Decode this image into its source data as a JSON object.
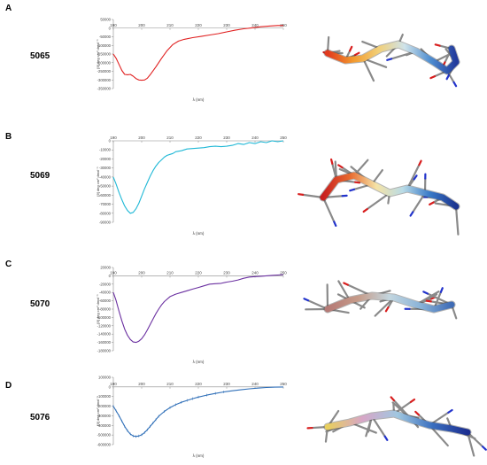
{
  "chart_data": [
    {
      "type": "line",
      "panel_label": "A",
      "sample_id": "5065",
      "color": "#e02020",
      "xlabel": "λ (nm)",
      "ylabel": "[θ] deg cm² dmol⁻¹",
      "xlim": [
        190,
        250
      ],
      "ylim": [
        -350000,
        50000
      ],
      "x_ticks": [
        "190",
        "200",
        "210",
        "220",
        "230",
        "240",
        "250"
      ],
      "y_ticks": [
        "50000",
        "0",
        "-50000",
        "-100000",
        "-150000",
        "-200000",
        "-250000",
        "-300000",
        "-350000"
      ],
      "series": [
        {
          "x": [
            190,
            191,
            192,
            193,
            194,
            195,
            196,
            197,
            198,
            199,
            200,
            201,
            202,
            203,
            205,
            207,
            209,
            211,
            213,
            215,
            218,
            221,
            224,
            227,
            230,
            233,
            236,
            239,
            242,
            245,
            248,
            250
          ],
          "y": [
            -150000,
            -175000,
            -210000,
            -245000,
            -268000,
            -270000,
            -268000,
            -278000,
            -292000,
            -300000,
            -302000,
            -300000,
            -290000,
            -270000,
            -225000,
            -175000,
            -130000,
            -95000,
            -75000,
            -65000,
            -55000,
            -48000,
            -40000,
            -32000,
            -22000,
            -12000,
            -4000,
            2000,
            8000,
            12000,
            15000,
            15000
          ]
        }
      ]
    },
    {
      "type": "line",
      "panel_label": "B",
      "sample_id": "5069",
      "color": "#1fb8d6",
      "xlabel": "λ (nm)",
      "ylabel": "[θ] deg cm² dmol⁻¹",
      "xlim": [
        190,
        250
      ],
      "ylim": [
        -90000,
        0
      ],
      "x_ticks": [
        "190",
        "200",
        "210",
        "220",
        "230",
        "240",
        "250"
      ],
      "y_ticks": [
        "0",
        "-10000",
        "-20000",
        "-30000",
        "-40000",
        "-50000",
        "-60000",
        "-70000",
        "-80000",
        "-90000"
      ],
      "series": [
        {
          "x": [
            190,
            191,
            192,
            193,
            194,
            195,
            196,
            197,
            198,
            199,
            200,
            201,
            202,
            203,
            204,
            205,
            206,
            207,
            208,
            209,
            210,
            211,
            212,
            214,
            216,
            218,
            220,
            222,
            224,
            226,
            228,
            230,
            232,
            234,
            236,
            238,
            240,
            242,
            244,
            246,
            248,
            250
          ],
          "y": [
            -40000,
            -48000,
            -57000,
            -65000,
            -72000,
            -77000,
            -80000,
            -79000,
            -75000,
            -69000,
            -61000,
            -53000,
            -46000,
            -39000,
            -33000,
            -28000,
            -24000,
            -21000,
            -18000,
            -16000,
            -15000,
            -14000,
            -12000,
            -11000,
            -9000,
            -8500,
            -8000,
            -7500,
            -6500,
            -6000,
            -6500,
            -6000,
            -5000,
            -3000,
            -4000,
            -2000,
            -3000,
            -1000,
            -2000,
            0,
            -1000,
            0
          ]
        }
      ]
    },
    {
      "type": "line",
      "panel_label": "C",
      "sample_id": "5070",
      "color": "#6a2fa0",
      "xlabel": "λ (nm)",
      "ylabel": "[θ] deg cm² dmol⁻¹",
      "xlim": [
        190,
        250
      ],
      "ylim": [
        -180000,
        20000
      ],
      "x_ticks": [
        "190",
        "200",
        "210",
        "220",
        "230",
        "240",
        "250"
      ],
      "y_ticks": [
        "20000",
        "0",
        "-20000",
        "-40000",
        "-60000",
        "-80000",
        "-100000",
        "-120000",
        "-140000",
        "-160000",
        "-180000"
      ],
      "series": [
        {
          "x": [
            190,
            191,
            192,
            193,
            194,
            195,
            196,
            197,
            198,
            199,
            200,
            201,
            202,
            203,
            204,
            205,
            206,
            207,
            208,
            210,
            212,
            214,
            216,
            218,
            220,
            222,
            224,
            226,
            228,
            230,
            232,
            234,
            236,
            238,
            240,
            242,
            244,
            246,
            248,
            250
          ],
          "y": [
            -40000,
            -60000,
            -85000,
            -108000,
            -128000,
            -143000,
            -153000,
            -159000,
            -160000,
            -157000,
            -151000,
            -142000,
            -130000,
            -117000,
            -104000,
            -91000,
            -80000,
            -70000,
            -62000,
            -50000,
            -44000,
            -40000,
            -36000,
            -32000,
            -28000,
            -24000,
            -20000,
            -19000,
            -18000,
            -15000,
            -13000,
            -10000,
            -6000,
            -3000,
            -2000,
            -1000,
            0,
            1000,
            2000,
            3000
          ]
        }
      ]
    },
    {
      "type": "line",
      "panel_label": "D",
      "sample_id": "5076",
      "color": "#2f6fb8",
      "xlabel": "λ (nm)",
      "ylabel": "[θ] deg cm² dmol⁻¹",
      "xlim": [
        190,
        250
      ],
      "ylim": [
        -600000,
        100000
      ],
      "x_ticks": [
        "190",
        "200",
        "210",
        "220",
        "230",
        "240",
        "250"
      ],
      "y_ticks": [
        "100000",
        "0",
        "-100000",
        "-200000",
        "-300000",
        "-400000",
        "-500000",
        "-600000"
      ],
      "series": [
        {
          "x": [
            190,
            191,
            192,
            193,
            194,
            195,
            196,
            197,
            198,
            199,
            200,
            201,
            202,
            203,
            204,
            205,
            206,
            208,
            210,
            212,
            214,
            216,
            218,
            220,
            223,
            226,
            229,
            232,
            235,
            238,
            241,
            244,
            247,
            250
          ],
          "y": [
            -200000,
            -250000,
            -300000,
            -355000,
            -410000,
            -455000,
            -490000,
            -510000,
            -515000,
            -510000,
            -498000,
            -475000,
            -445000,
            -410000,
            -375000,
            -340000,
            -305000,
            -255000,
            -215000,
            -185000,
            -160000,
            -140000,
            -122000,
            -105000,
            -85000,
            -68000,
            -52000,
            -40000,
            -30000,
            -20000,
            -12000,
            -6000,
            -2000,
            0
          ]
        }
      ]
    }
  ]
}
